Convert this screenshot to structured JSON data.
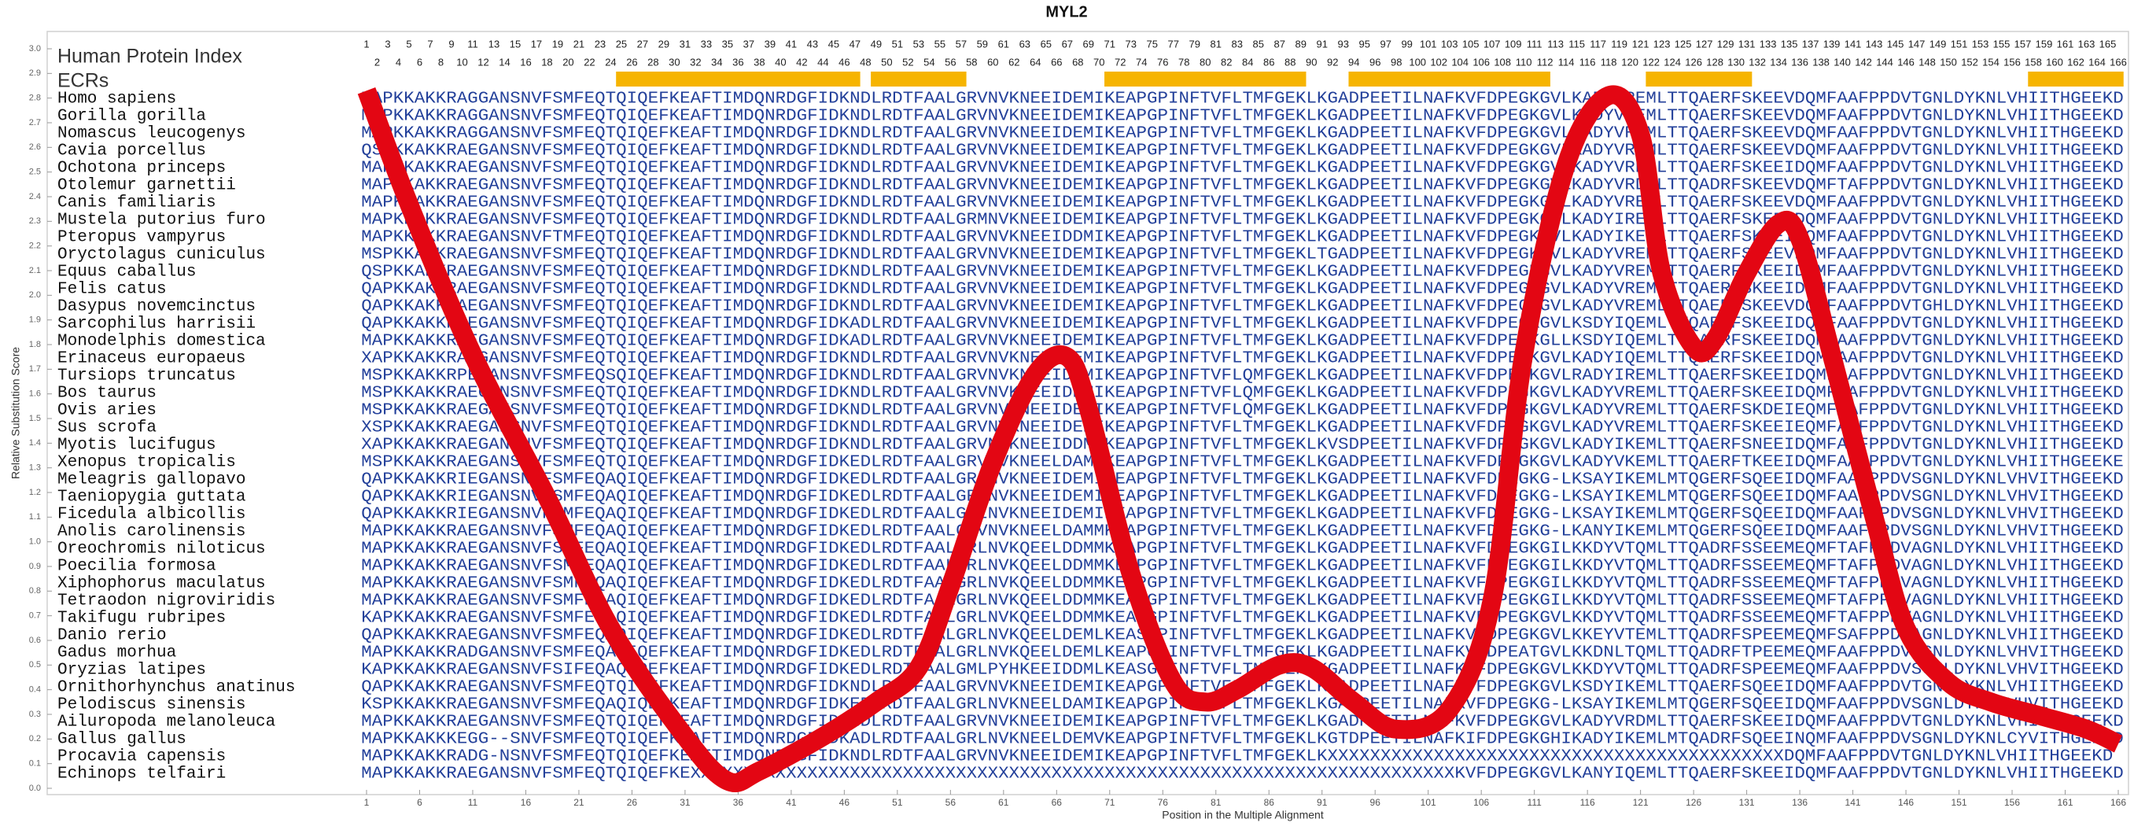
{
  "chart_data": {
    "type": "line",
    "title": "MYL2",
    "x_label": "Position in the Multiple Alignment",
    "y_label": "Relative Substitution Score",
    "index_title": "Human Protein Index",
    "ecr_title": "ECRs",
    "color": "#e30613",
    "ecr_color": "#f6b400",
    "sequence_color": "#23409a",
    "x": [
      1,
      5,
      11,
      18,
      24,
      31,
      35,
      38,
      44,
      49,
      53,
      56,
      60,
      64,
      67,
      69,
      73,
      77,
      80,
      83,
      87,
      90,
      94,
      98,
      103,
      107,
      110,
      114,
      118,
      121,
      123,
      126,
      128,
      131,
      134,
      136,
      139,
      143,
      146,
      150,
      154,
      159,
      163,
      166
    ],
    "values": [
      2.83,
      2.37,
      1.76,
      1.18,
      0.65,
      0.21,
      0.03,
      0.07,
      0.21,
      0.35,
      0.49,
      0.82,
      1.32,
      1.68,
      1.75,
      1.54,
      0.87,
      0.43,
      0.35,
      0.4,
      0.5,
      0.49,
      0.35,
      0.24,
      0.32,
      0.76,
      1.76,
      2.53,
      2.81,
      2.65,
      2.09,
      1.79,
      1.82,
      2.09,
      2.29,
      2.23,
      1.76,
      1.1,
      0.65,
      0.43,
      0.35,
      0.29,
      0.24,
      0.18
    ],
    "xlim": [
      1,
      166
    ],
    "ylim": [
      0,
      3
    ],
    "xticks": [
      1,
      6,
      11,
      16,
      21,
      26,
      31,
      36,
      41,
      46,
      51,
      56,
      61,
      66,
      71,
      76,
      81,
      86,
      91,
      96,
      101,
      106,
      111,
      116,
      121,
      126,
      131,
      136,
      141,
      146,
      151,
      156,
      161,
      166
    ],
    "yticks": [
      {
        "value": 0,
        "label": "0.0"
      },
      {
        "value": 0.1,
        "label": "0.1"
      },
      {
        "value": 0.2,
        "label": "0.2"
      },
      {
        "value": 0.3,
        "label": "0.3"
      },
      {
        "value": 0.4,
        "label": "0.4"
      },
      {
        "value": 0.5,
        "label": "0.5"
      },
      {
        "value": 0.6,
        "label": "0.6"
      },
      {
        "value": 0.7,
        "label": "0.7"
      },
      {
        "value": 0.8,
        "label": "0.8"
      },
      {
        "value": 0.9,
        "label": "0.9"
      },
      {
        "value": 1,
        "label": "1.0"
      },
      {
        "value": 1.1,
        "label": "1.1"
      },
      {
        "value": 1.2,
        "label": "1.2"
      },
      {
        "value": 1.3,
        "label": "1.3"
      },
      {
        "value": 1.4,
        "label": "1.4"
      },
      {
        "value": 1.5,
        "label": "1.5"
      },
      {
        "value": 1.6,
        "label": "1.6"
      },
      {
        "value": 1.7,
        "label": "1.7"
      },
      {
        "value": 1.8,
        "label": "1.8"
      },
      {
        "value": 1.9,
        "label": "1.9"
      },
      {
        "value": 2,
        "label": "2.0"
      },
      {
        "value": 2.1,
        "label": "2.1"
      },
      {
        "value": 2.2,
        "label": "2.2"
      },
      {
        "value": 2.3,
        "label": "2.3"
      },
      {
        "value": 2.4,
        "label": "2.4"
      },
      {
        "value": 2.5,
        "label": "2.5"
      },
      {
        "value": 2.6,
        "label": "2.6"
      },
      {
        "value": 2.7,
        "label": "2.7"
      },
      {
        "value": 2.8,
        "label": "2.8"
      },
      {
        "value": 2.9,
        "label": "2.9"
      },
      {
        "value": 3,
        "label": "3.0"
      }
    ],
    "index_positions": [
      1,
      2,
      3,
      4,
      5,
      6,
      7,
      8,
      9,
      10,
      11,
      12,
      13,
      14,
      15,
      16,
      17,
      18,
      19,
      20,
      21,
      22,
      23,
      24,
      25,
      26,
      27,
      28,
      29,
      30,
      31,
      32,
      33,
      34,
      35,
      36,
      37,
      38,
      39,
      40,
      41,
      42,
      43,
      44,
      45,
      46,
      47,
      48,
      49,
      50,
      51,
      52,
      53,
      54,
      55,
      56,
      57,
      58,
      59,
      60,
      61,
      62,
      63,
      64,
      65,
      66,
      67,
      68,
      69,
      70,
      71,
      72,
      73,
      74,
      75,
      76,
      77,
      78,
      79,
      80,
      81,
      82,
      83,
      84,
      85,
      86,
      87,
      88,
      89,
      90,
      91,
      92,
      93,
      94,
      95,
      96,
      97,
      98,
      99,
      100,
      101,
      102,
      103,
      104,
      105,
      106,
      107,
      108,
      109,
      110,
      111,
      112,
      113,
      114,
      115,
      116,
      117,
      118,
      119,
      120,
      121,
      122,
      123,
      124,
      125,
      126,
      127,
      128,
      129,
      130,
      131,
      132,
      133,
      134,
      135,
      136,
      137,
      138,
      139,
      140,
      141,
      142,
      143,
      144,
      145,
      146,
      147,
      148,
      149,
      150,
      151,
      152,
      153,
      154,
      155,
      156,
      157,
      158,
      159,
      160,
      161,
      162,
      163,
      164,
      165,
      166
    ],
    "ecr_ranges": [
      [
        25,
        47
      ],
      [
        49,
        57
      ],
      [
        71,
        89
      ],
      [
        94,
        112
      ],
      [
        122,
        131
      ],
      [
        158,
        166
      ]
    ],
    "species": [
      "Homo sapiens",
      "Gorilla gorilla",
      "Nomascus leucogenys",
      "Cavia porcellus",
      "Ochotona princeps",
      "Otolemur garnettii",
      "Canis familiaris",
      "Mustela putorius furo",
      "Pteropus vampyrus",
      "Oryctolagus cuniculus",
      "Equus caballus",
      "Felis catus",
      "Dasypus novemcinctus",
      "Sarcophilus harrisii",
      "Monodelphis domestica",
      "Erinaceus europaeus",
      "Tursiops truncatus",
      "Bos taurus",
      "Ovis aries",
      "Sus scrofa",
      "Myotis lucifugus",
      "Xenopus tropicalis",
      "Meleagris gallopavo",
      "Taeniopygia guttata",
      "Ficedula albicollis",
      "Anolis carolinensis",
      "Oreochromis niloticus",
      "Poecilia formosa",
      "Xiphophorus maculatus",
      "Tetraodon nigroviridis",
      "Takifugu rubripes",
      "Danio rerio",
      "Gadus morhua",
      "Oryzias latipes",
      "Ornithorhynchus anatinus",
      "Pelodiscus sinensis",
      "Ailuropoda melanoleuca",
      "Gallus gallus",
      "Procavia capensis",
      "Echinops telfairi"
    ],
    "sequences": [
      "MAPKKAKKRAGGANSNVFSMFEQTQIQEFKEAFTIMDQNRDGFIDKNDLRDTFAALGRVNVKNEEIDEMIKEAPGPINFTVFLTMFGEKLKGADPEETILNAFKVFDPEGKGVLKADYVREMLTTQAERFSKEEVDQMFAAFPPDVTGNLDYKNLVHIITHGEEKD",
      "MAPKKAKKRAGGANSNVFSMFEQTQIQEFKEAFTIMDQNRDGFIDKNDLRDTFAALGRVNVKNEEIDEMIKEAPGPINFTVFLTMFGEKLKGADPEETILNAFKVFDPEGKGVLKADYVREMLTTQAERFSKEEVDQMFAAFPPDVTGNLDYKNLVHIITHGEEKD",
      "MAPKKAKKRAGGANSNVFSMFEQTQIQEFKEAFTIMDQNRDGFIDKNDLRDTFAALGRVNVKNEEIDEMIKEAPGPINFTVFLTMFGEKLKGADPEETILNAFKVFDPEGKGVLKADYVREMLTTQAERFSKEEVDQMFAAFPPDVTGNLDYKNLVHIITHGEEKD",
      "QSPKKAKKRAEGANSNVFSMFEQTQIQEFKEAFTIMDQNRDGFIDKNDLRDTFAALGRVNVKNEEIDEMIKEAPGPINFTVFLTMFGEKLKGADPEETILNAFKVFDPEGKGVLKADYVREMLTTQAERFSKEEVDQMFAAFPPDVTGNLDYKNLVHIITHGEEKD",
      "MAPKKAKKRAEGANSNVFSMFEQTQIQEFKEAFTIMDQNRDGFIDKNDLRDTFAALGRVNVKNEEIDEMIKEAPGPINFTVFLTMFGEKLKGADPEETILNAFKVFDPEGKGVLKADYVREMLTTQAERFSKEEIDQMFAAFPPDVTGNLDYKNLVHIITHGEEKD",
      "MAPKKAKKRAEGANSNVFSMFEQTQIQEFKEAFTIMDQNRDGFIDKNDLRDTFAALGRVNVKNEEIDEMIKEAPGPINFTVFLTMFGEKLKGADPEETILNAFKVFDPEGKGVLKADYVRDMLTTQADRFSKEEVDQMFTAFPPDVTGNLDYKNLVHIITHGEEKD",
      "MAPKKAKKRAEGANSNVFSMFEQTQIQEFKEAFTIMDQNRDGFIDKNDLRDTFAALGRVNVKNEEIDEMIKEAPGPINFTVFLTMFGEKLKGADPEETILNAFKVFDPEGKGVLKADYVREMLTTQAERFSKEEVDQMFAAFPPDVTGNLDYKNLVHIITHGEEKD",
      "MAPKKAKKRAEGANSNVFSMFEQTQIQEFKEAFTIMDQNRDGFIDKNDLRDTFAALGRMNVKNEEIDEMIKEAPGPINFTVFLTMFGEKLKGADPEETILNAFKVFDPEGKGVLKADYIREMLTTQAERFSKEEIDQMFAAFPPDVTGNLDYKNLVHIITHGEEKD",
      "MAPKKAKKRAEGANSNVFTMFEQTQIQEFKEAFTIMDQNRDGFIDKNDLRDTFAALGRVNVKNEEIDDMIKEAPGPINFTVFLTMFGEKLKGADPEETILNAFKVFDPEGKGVLKADYIKEMLTTQAERFSKEEIDQMFAAFPPDVTGNLDYKNLVHIITHGEEKD",
      "MSPKKAKKRAEGANSNVFSMFEQTQIQEFKEAFTIMDQNRDGFIDKNDLRDTFAALGRVNVKNEEIDEMIKEAPGPINFTVFLTMFGEKLTGADPEETILNAFKVFDPEGKGVLKADYVREMLTTQAERFSKEEVDQMFAAFPPDVTGNLDYKNLVHIITHGEEKD",
      "QSPKKAKKRAEGANSNVFSMFEQTQIQEFKEAFTIMDQNRDGFIDKNDLRDTFAALGRVNVKNEEIDEMIKEAPGPINFTVFLTMFGEKLKGADPEETILNAFKVFDPEGKGVLKADYVREMLTTQAERFSKEEIDQMFAAFPPDVTGNLDYKNLVHIITHGEEKD",
      "QAPKKAKKRAEGANSNVFSMFEQTQIQEFKEAFTIMDQNRDGFIDKNDLRDTFAALGRVNVKNEEIDEMIKEAPGPINFTVFLTMFGEKLKGADPEETILNAFKVFDPEGKGVLKADYVREMLTTQAERFSKEEIDQMFAAFPPDVTGNLDYKNLVHIITHGEEKD",
      "QAPKKAKKRAEGANSNVFSMFEQTQIQEFKEAFTIMDQNRDGFIDKNDLRDTFAALGRVNVKNEEIDEMIKEAPGPINFTVFLTMFGEKLKGADPEETILNAFKVFDPEGKGVLKADYVREMLTTQAERFSKEEVDQMFAAFPPDVTGHLDYKNLVHIITHGEEKD",
      "QAPKKAKKRAEGANSNVFSMFEQTQIQEFKEAFTIMDQNRDGFIDKADLRDTFAALGRVNVKNEEIDEMIKEAPGPINFTVFLTMFGEKLKGADPEETILNAFKVFDPEGKGVLKSDYIQEMLTTQAERFSKEEIDQMFAAFPPDVTGNLDYKNLVHIITHGEEKD",
      "MAPKKAKKRAEGANSNVFSMFEQTQIQEFKEAFTIMDQNRDGFIDKADLRDTFAALGRVNVKNEEIDEMIKEAPGPINFTVFLTMFGEKLKGADPEETILNAFKVFDPEGKGLLKSDYIQEMLTTQAERFSKEEIDQMFAAFPPDVTGNLDYKNLVHIITHGEEKD",
      "XAPKKAKKRAEGANSNVFSMFEQTQIQEFKEAFTIMDQNRDGFIDKNDLRDTFAALGRVNVKNEEIDEMIKEAPGPINFTVFLTMFGEKLKGADPEETILNAFKVFDPEGKGVLKADYIQEMLTTQAERFSKEEIDQMFAAFPPDVTGNLDYKNLVHIITHGEEKD",
      "MSPKKAKKRPEGANSNVFSMFEQSQIQEFKEAFTIMDQNRDGFIDKNDLRDTFAALGRVNVKNEEIDEMIKEAPGPINFTVFLQMFGEKLKGADPEETILNAFKVFDPEGKGVLRADYIREMLTTQAERFSKEEIDQMFAAFPPDVTGNLDYKNLVHIITHGEEKD",
      "MSPKKAKKRAEGANSNVFSMFEQTQIQEFKEAFTIMDQNRDGFIDKNDLRDTFAALGRVNVKNEEIDEMIKEAPGPINFTVFLQMFGEKLKGADPEETILNAFKVFDPEGKGVLKADYVREMLTTQAERFSKEEIDQMFAAFPPDVTGNLDYKNLVHIITHGEEKD",
      "MSPKKAKKRAEGANSNVFSMFEQTQIQEFKEAFTIMDQNRDGFIDKNDLRDTFAALGRVNVKNEEIDEMIKEAPGPINFTVFLQMFGEKLKGADPEETILNAFKVFDPEGKGVLKADYVREMLTTQAERFSKDEIEQMFAAFPPDVTGNLDYKNLVHIITHGEEKD",
      "XSPKKAKKRAEGANSNVFSMFEQTQIQEFKEAFTIMDQNRDGFIDKNDLRDTFAALGRVNVKNEEIDEMIKEAPGPINFTVFLTMFGEKLKGADPEETILNAFKVFDPEGKGVLKADYVREMLTTQAERFSKEEIEQMFAAFPPDVTGNLDYKNLVHIITHGEEKD",
      "XAPKKAKKRAEGANSNVFSMFEQTQIQEFKEAFTIMDQNRDGFIDKNDLRDTFAALGRVNVKNEEIDDMIKEAPGPINFTVFLTMFGEKLKVSDPEETILNAFKVFDPEGKGVLKADYIKEMLTTQAERFSNEEIDQMFAAFPPDVTGNLDYKNLVHIITHGEEKD",
      "MSPKKAKKRAEGANSNVFSMFEQTQIQEFKEAFTIMDQNRDGFIDKEDLRDTFAALGRVNVKNEELDAMMKEAPGPINFTVFLTMFGEKLKGADPEETILNAFKVFDPEGKGVLKADYVKEMLTTQAERFTKEEIDQMFAAFPPDVTGNLDYKNLVHIITHGEEKE",
      "QAPKKAKKRIEGANSNVFSMFEQAQIQEFKEAFTIMDQNRDGFIDKEDLRDTFAALGRLNVKNEEIDEMIKEAPGPINFTVFLTMFGEKLKGADPEETILNAFKVFDPEGKG-LKSAYIKEMLMTQGERFSQEEIDQMFAAFPPDVSGNLDYKNLVHVITHGEEKD",
      "QAPKKAKKRIEGANSNVFSMFEQAQIQEFKEAFTIMDQNRDGFIDKEDLRDTFAALGRLNVKNEEIDEMIKEAPGPINFTVFLTMFGEKLKGADPEETILNAFKVFDPEGKG-LKSAYIKEMLMTQGERFSQEEIDQMFAAFPPDVSGNLDYKNLVHVITHGEEKD",
      "QAPKKAKKRIEGANSNVFSMFEQAQIQEFKEAFTIMDQNRDGFIDKEDLRDTFAALGRLNVKNEEIDEMIKEAPGPINFTVFLTMFGEKLKGADPEETILNAFKVFDPEGKG-LKSAYIKEMLMTQGERFSQEEIDQMFAAFPPDVSGNLDYKNLVHVITHGEEKD",
      "MAPKKAKKRAEGANSNVFSMFEQAQIQEFKEAFTIMDQNRDGFIDKEDLRDTFAALGRVNVKNEELDAMMKEAPGPINFTVFLTMFGEKLKGADPEETILNAFKVFDPEGKG-LKANYIKEMLMTQGERFSQEEIDQMFAAFPPDVSGNLDYKNLVHVITHGEEKD",
      "MAPKKAKKRAEGANSNVFSMFEQAQIQEFKEAFTIMDQNRDGFIDKEDLRDTFAALGRLNVKQEELDDMMKEAPGPINFTVFLTMFGEKLKGADPEETILNAFKVFDPEGKGILKKDYVTQMLTTQADRFSSEEMEQMFTAFPPDVAGNLDYKNLVHIITHGEEKD",
      "MAPKKAKKRAEGANSNVFSMFEQAQIQEFKEAFTIMDQNRDGFIDKEDLRDTFAALGRLNVKQEELDDMMKEAPGPINFTVFLTMFGEKLKGADPEETILNAFKVFDPEGKGILKKDYVTQMLTTQADRFSSEEMEQMFTAFPPDVAGNLDYKNLVHIITHGEEKD",
      "MAPKKAKKRAEGANSNVFSMFEQAQIQEFKEAFTIMDQNRDGFIDKEDLRDTFAALGRLNVKQEELDDMMKEAPGPINFTVFLTMFGEKLKGADPEETILNAFKVFDPEGKGILKKDYVTQMLTTQADRFSSEEMEQMFTAFPPDVAGNLDYKNLVHIITHGEEKD",
      "MAPKKAKKRAEGANSNVFSMFEQAQIQEFKEAFTIMDQNRDGFIDKEDLRDTFAALGRLNVKQEELDDMMKEAPGPINFTVFLTMFGEKLKGADPEETILNAFKVFDPEGKGILKKDYVTQMLTTQADRFSSEEMEQMFTAFPPDVAGNLDYKNLVHIITHGEEKD",
      "KAPKKAKKRAEGANSNVFSMFEQAQIQEFKEAFTIMDQNRDGFIDKEDLRDTFAALGRLNVKQEELDDMMKEAPGPINFTVFLTMFGEKLKGADPEETILNAFKVFDPEGKGVLKKDYVTQMLTTQADRFSSEEMEQMFTAFPPDVAGNLDYKNLVHIITHGEEKD",
      "QAPKKAKKRAEGANSNVFSMFEQAQIQEFKEAFTIMDQNRDGFIDKEDLRDTFAALGRLNVKQEELDEMLKEASGPINFTVFLTMFGEKLKGADPEETILNAFKVFDPEGKGVLKKEYVTEMLTTQADRFSPEEMEQMFSAFPPDAAGNLDYKNLVHIITHGEEKD",
      "MAPKKAKKRADGANSNVFSMFEQAQIQEFKEAFTIMDQNRDGFIDKEDLRDTFAALGRLNVKQEELDEMLKEAPGPINFTVFLTMFGEKLKGADPEETILNAFKVFDPEATGVLKKDNLTQMLTTQADRFTPEEMEQMFAAFPPDVAGNLDYKNLVHVITHGEEKD",
      "KAPKKAKKRAEGANSNVFSIFEQAQIQEFKEAFTIMDQNRDGFIDKEDLRDTFAALGMLPYHKEEIDDMLKEASGPINFTVFLTMFGEKLKGADPEETILNAFKVFDPEGKGVLKKDYVTQMLTTQADRFSPEEMEQMFAAFPPDVSGNLDYKNLVHVITHGEEKD",
      "QAPKKAKKRAEGANSNVFSMFEQTQIQEFKEAFTIMDQNRDGFIDKNDLRDTFAALGRVNVKNEEIDEMIKEAPGPINFTVFLTMFGEKLKGADPEETILNAFKVFDPEGKGVLKSDYIKEMLTTQAERFSQEEIDQMFAAFPPDVTGNLDYKNLVHIITHGEEKD",
      "KSPKKAKKRAEGANSNVFSMFEQAQIQEFKEAFTIMDQNRDGFIDKEDLRDTFAALGRLNVKNEELDAMIKEAPGPINFTVFLTMFGEKLKGADPEETILNAFKVFDPEGKG-LKSAYIKEMLMTQGERFSQEEIDQMFAAFPPDVSGNLDYKNLVHVITHGEEKD",
      "MAPKKAKKRAEGANSNVFSMFEQTQIQEFKEAFTIMDQNRDGFIDKNDLRDTFAALGRVNVKNEEIDEMIKEAPGPINFTVFLTMFGEKLKGADPEETILNAFKVFDPEGKGVLKADYVRDMLTTQAERFSKEEIDQMFAAFPPDVTGNLDYKNLVHIITHGEEKD",
      "MAPKKAKKKEGG--SNVFSMFEQTQIQEFKEAFTIMDQNRDGFIDKADLRDTFAALGRLNVKNEELDEMVKEAPGPINFTVFLTMFGEKLKGTDPEETILNAFKIFDPEGKGHIKADYIKEMLMTQADRFSQEEINQMFAAFPPDVSGNLDYKNLCYVITHGEEKD",
      "MAPKKAKKRADG-NSNVFSMFEQTQIQEFKEAFTIMDQNRDGFIDKNDLRDTFAALGRVNVKNEEIDEMIKEAPGPINFTVFLTMFGEKLKXXXXXXXXXXXXXXXXXXXXXXXXXXXXXXXXXXXXXXXXXXXDQMFAAFPPDVTGNLDYKNLVHIITHGEEKD",
      "MAPKKAKKRAEGANSNVFSMFEQTQIQEFKEXXXXXXXXXXXXXXXXXXXXXXXXXXXXXXXXXXXXXXXXXXXXXXXXXXXXXXXXXXXXXXXXXXXXXXXXKVFDPEGKGVLKANYIQEMLTTQAERFSKEEIDQMFAAFPPDVTGNLDYKNLVHIITHGEEKD"
    ]
  }
}
